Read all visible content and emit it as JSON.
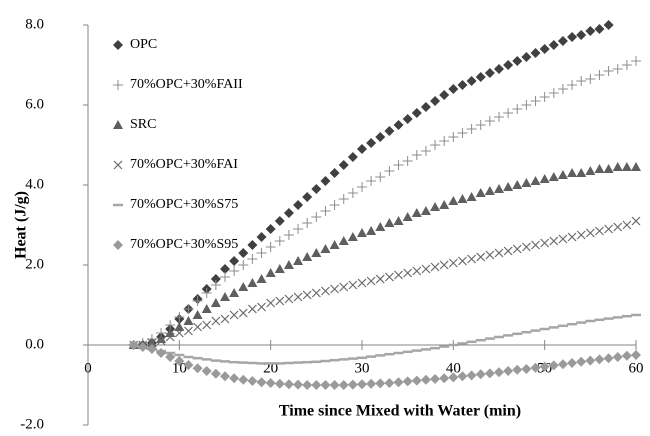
{
  "chart_data": {
    "type": "scatter",
    "x_label": "Time since Mixed with Water (min)",
    "y_label": "Heat (J/g)",
    "x": [
      5,
      6,
      7,
      8,
      9,
      10,
      11,
      12,
      13,
      14,
      15,
      16,
      17,
      18,
      19,
      20,
      21,
      22,
      23,
      24,
      25,
      26,
      27,
      28,
      29,
      30,
      31,
      32,
      33,
      34,
      35,
      36,
      37,
      38,
      39,
      40,
      41,
      42,
      43,
      44,
      45,
      46,
      47,
      48,
      49,
      50,
      51,
      52,
      53,
      54,
      55,
      56,
      57,
      58,
      59,
      60
    ],
    "xlim": [
      0,
      60
    ],
    "xticks": [
      0,
      10,
      20,
      30,
      40,
      50,
      60
    ],
    "ylim": [
      -2,
      8
    ],
    "yticks": [
      {
        "value": -2,
        "label": "-2.0"
      },
      {
        "value": 0,
        "label": "0.0"
      },
      {
        "value": 2,
        "label": "2.0"
      },
      {
        "value": 4,
        "label": "4.0"
      },
      {
        "value": 6,
        "label": "6.0"
      },
      {
        "value": 8,
        "label": "8.0"
      }
    ],
    "grid": false,
    "legend": "top-left",
    "series": [
      {
        "name": "OPC",
        "color": "#404040",
        "marker": "diamond",
        "values": [
          0,
          0,
          0.05,
          0.2,
          0.4,
          0.65,
          0.9,
          1.15,
          1.4,
          1.65,
          1.9,
          2.1,
          2.3,
          2.5,
          2.7,
          2.9,
          3.1,
          3.3,
          3.5,
          3.7,
          3.9,
          4.1,
          4.3,
          4.5,
          4.7,
          4.9,
          5.05,
          5.2,
          5.35,
          5.5,
          5.65,
          5.8,
          5.95,
          6.1,
          6.25,
          6.4,
          6.5,
          6.6,
          6.7,
          6.8,
          6.9,
          7.0,
          7.1,
          7.2,
          7.3,
          7.4,
          7.5,
          7.6,
          7.7,
          7.75,
          7.85,
          7.9,
          8.0,
          null,
          null,
          null
        ]
      },
      {
        "name": "70%OPC+30%FAII",
        "color": "#8c8c8c",
        "marker": "plus",
        "values": [
          0,
          0.05,
          0.15,
          0.3,
          0.5,
          0.7,
          0.9,
          1.1,
          1.3,
          1.5,
          1.7,
          1.85,
          2.0,
          2.15,
          2.3,
          2.45,
          2.6,
          2.75,
          2.9,
          3.05,
          3.2,
          3.35,
          3.5,
          3.65,
          3.8,
          3.95,
          4.1,
          4.2,
          4.35,
          4.5,
          4.6,
          4.75,
          4.85,
          5.0,
          5.1,
          5.2,
          5.3,
          5.4,
          5.5,
          5.6,
          5.7,
          5.8,
          5.9,
          6.0,
          6.1,
          6.2,
          6.3,
          6.4,
          6.5,
          6.6,
          6.65,
          6.75,
          6.85,
          6.9,
          7.0,
          7.1
        ]
      },
      {
        "name": "SRC",
        "color": "#5f5f5f",
        "marker": "triangle",
        "values": [
          0,
          0,
          0.05,
          0.15,
          0.3,
          0.45,
          0.6,
          0.75,
          0.9,
          1.05,
          1.2,
          1.3,
          1.45,
          1.55,
          1.65,
          1.8,
          1.9,
          2.0,
          2.1,
          2.2,
          2.3,
          2.4,
          2.5,
          2.6,
          2.7,
          2.8,
          2.85,
          2.95,
          3.05,
          3.1,
          3.2,
          3.3,
          3.35,
          3.45,
          3.5,
          3.6,
          3.65,
          3.7,
          3.8,
          3.85,
          3.9,
          3.95,
          4.0,
          4.05,
          4.1,
          4.15,
          4.2,
          4.25,
          4.3,
          4.3,
          4.35,
          4.4,
          4.4,
          4.45,
          4.45,
          4.45
        ]
      },
      {
        "name": "70%OPC+30%FAI",
        "color": "#6a6a6a",
        "marker": "cross",
        "values": [
          0,
          0,
          0.05,
          0.1,
          0.2,
          0.3,
          0.35,
          0.45,
          0.5,
          0.6,
          0.65,
          0.75,
          0.8,
          0.9,
          0.95,
          1.05,
          1.1,
          1.15,
          1.2,
          1.25,
          1.3,
          1.35,
          1.4,
          1.45,
          1.5,
          1.55,
          1.6,
          1.65,
          1.7,
          1.75,
          1.8,
          1.85,
          1.9,
          1.95,
          2.0,
          2.05,
          2.1,
          2.15,
          2.2,
          2.25,
          2.3,
          2.35,
          2.4,
          2.45,
          2.5,
          2.55,
          2.6,
          2.65,
          2.7,
          2.75,
          2.8,
          2.85,
          2.9,
          2.95,
          3.0,
          3.1
        ]
      },
      {
        "name": "70%OPC+30%S75",
        "color": "#a6a6a6",
        "marker": "dash",
        "values": [
          0,
          -0.05,
          -0.1,
          -0.15,
          -0.2,
          -0.25,
          -0.3,
          -0.33,
          -0.36,
          -0.39,
          -0.41,
          -0.43,
          -0.44,
          -0.45,
          -0.46,
          -0.46,
          -0.46,
          -0.45,
          -0.44,
          -0.43,
          -0.42,
          -0.4,
          -0.38,
          -0.36,
          -0.34,
          -0.32,
          -0.29,
          -0.26,
          -0.23,
          -0.2,
          -0.17,
          -0.14,
          -0.11,
          -0.08,
          -0.04,
          0,
          0.04,
          0.08,
          0.12,
          0.16,
          0.2,
          0.24,
          0.28,
          0.32,
          0.36,
          0.4,
          0.44,
          0.48,
          0.52,
          0.56,
          0.6,
          0.63,
          0.66,
          0.69,
          0.72,
          0.75
        ]
      },
      {
        "name": "70%OPC+30%S95",
        "color": "#9a9a9a",
        "marker": "diamond",
        "values": [
          0,
          -0.05,
          -0.1,
          -0.2,
          -0.3,
          -0.4,
          -0.5,
          -0.58,
          -0.65,
          -0.72,
          -0.78,
          -0.83,
          -0.87,
          -0.9,
          -0.93,
          -0.95,
          -0.97,
          -0.98,
          -0.99,
          -1.0,
          -1.0,
          -1.0,
          -1.0,
          -1.0,
          -0.99,
          -0.98,
          -0.97,
          -0.96,
          -0.95,
          -0.93,
          -0.91,
          -0.89,
          -0.87,
          -0.85,
          -0.83,
          -0.81,
          -0.78,
          -0.76,
          -0.73,
          -0.71,
          -0.68,
          -0.65,
          -0.62,
          -0.6,
          -0.57,
          -0.54,
          -0.51,
          -0.48,
          -0.45,
          -0.42,
          -0.39,
          -0.36,
          -0.33,
          -0.3,
          -0.27,
          -0.25
        ]
      }
    ]
  }
}
